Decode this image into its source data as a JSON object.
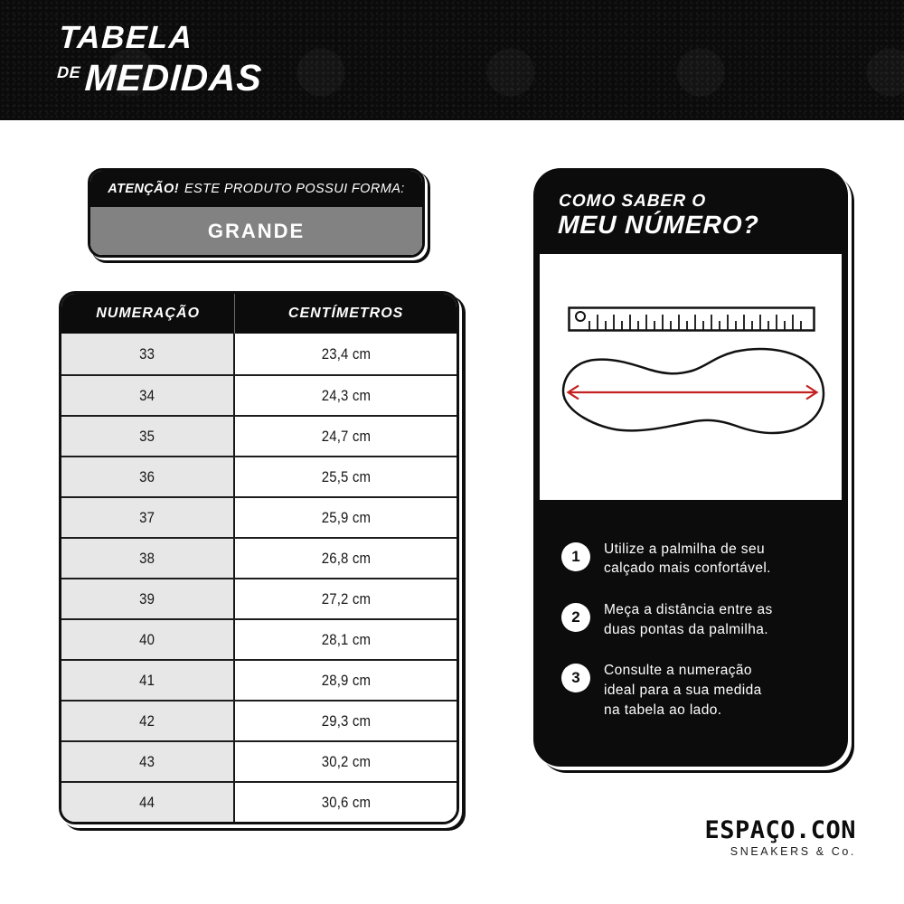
{
  "header": {
    "title_line1": "TABELA",
    "title_de": "DE",
    "title_line2": "MEDIDAS"
  },
  "attention": {
    "emphasis": "ATENÇÃO!",
    "text": "ESTE PRODUTO POSSUI FORMA:",
    "value": "GRANDE"
  },
  "size_table": {
    "columns": [
      "NUMERAÇÃO",
      "CENTÍMETROS"
    ],
    "rows": [
      [
        "33",
        "23,4 cm"
      ],
      [
        "34",
        "24,3 cm"
      ],
      [
        "35",
        "24,7 cm"
      ],
      [
        "36",
        "25,5 cm"
      ],
      [
        "37",
        "25,9 cm"
      ],
      [
        "38",
        "26,8 cm"
      ],
      [
        "39",
        "27,2 cm"
      ],
      [
        "40",
        "28,1 cm"
      ],
      [
        "41",
        "28,9 cm"
      ],
      [
        "42",
        "29,3 cm"
      ],
      [
        "43",
        "30,2 cm"
      ],
      [
        "44",
        "30,6 cm"
      ]
    ]
  },
  "chart_data": {
    "type": "table",
    "title": "TABELA DE MEDIDAS",
    "columns": [
      "NUMERAÇÃO",
      "CENTÍMETROS"
    ],
    "rows": [
      [
        "33",
        "23,4 cm"
      ],
      [
        "34",
        "24,3 cm"
      ],
      [
        "35",
        "24,7 cm"
      ],
      [
        "36",
        "25,5 cm"
      ],
      [
        "37",
        "25,9 cm"
      ],
      [
        "38",
        "26,8 cm"
      ],
      [
        "39",
        "27,2 cm"
      ],
      [
        "40",
        "28,1 cm"
      ],
      [
        "41",
        "28,9 cm"
      ],
      [
        "42",
        "29,3 cm"
      ],
      [
        "43",
        "30,2 cm"
      ],
      [
        "44",
        "30,6 cm"
      ]
    ]
  },
  "guide": {
    "title_line1": "COMO SABER O",
    "title_line2": "MEU NÚMERO?",
    "steps": [
      {
        "num": "1",
        "text": "Utilize a palmilha de seu\ncalçado mais confortável."
      },
      {
        "num": "2",
        "text": "Meça a distância entre as\nduas pontas da palmilha."
      },
      {
        "num": "3",
        "text": "Consulte a numeração\nideal para a sua medida\nna tabela ao lado."
      }
    ]
  },
  "brand": {
    "name": "ESPAÇO.CON",
    "tagline": "SNEAKERS & Co."
  },
  "colors": {
    "accent_red": "#c42121",
    "panel_black": "#0c0c0c",
    "gray_badge": "#828282",
    "row_gray": "#e7e7e7"
  }
}
